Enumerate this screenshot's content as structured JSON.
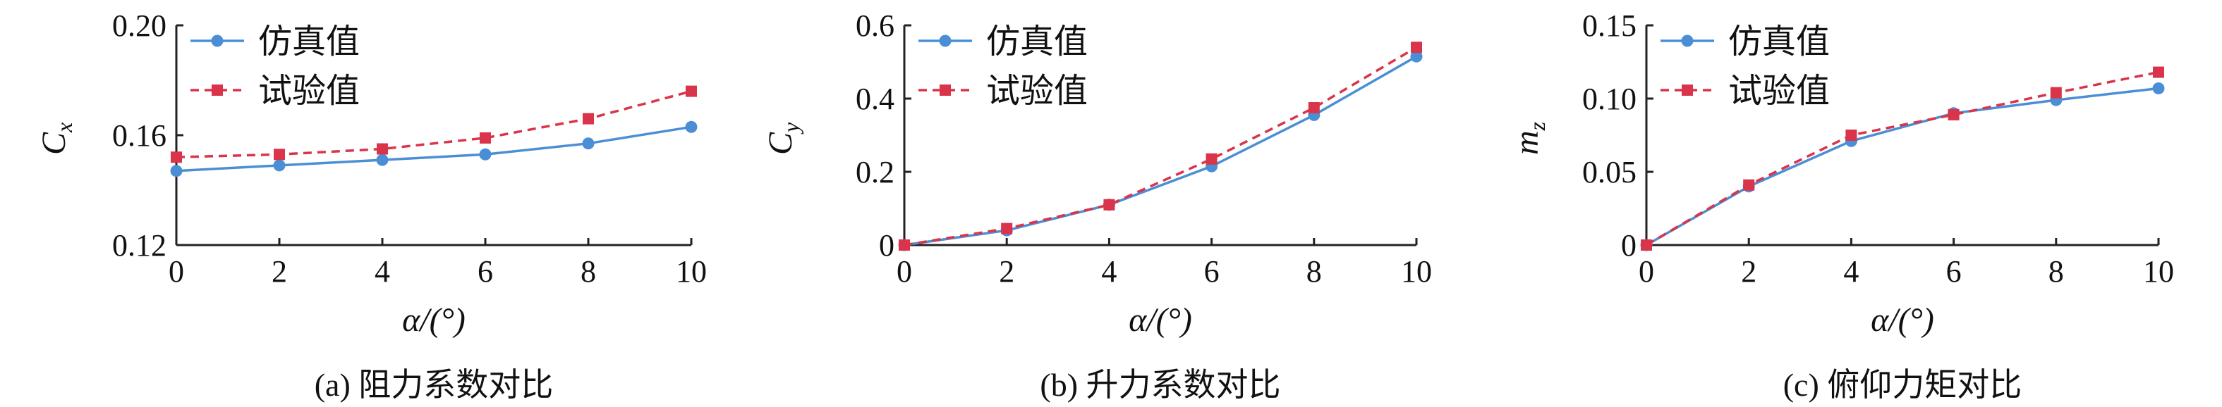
{
  "colors": {
    "sim": "#4a8fd6",
    "exp": "#d9344a"
  },
  "chart_data": [
    {
      "type": "line",
      "caption": "(a) 阻力系数对比",
      "xlabel": "α/(°)",
      "ylabel_main": "C",
      "ylabel_sub": "x",
      "x": [
        0,
        2,
        4,
        6,
        8,
        10
      ],
      "xlim": [
        0,
        10
      ],
      "ylim": [
        0.12,
        0.2
      ],
      "xticks": [
        "0",
        "2",
        "4",
        "6",
        "8",
        "10"
      ],
      "yticks": [
        "0.12",
        "0.16",
        "0.20"
      ],
      "ytick_values": [
        0.12,
        0.16,
        0.2
      ],
      "series": [
        {
          "name": "仿真值",
          "values": [
            0.147,
            0.149,
            0.151,
            0.153,
            0.157,
            0.163
          ],
          "style": "solid-circle"
        },
        {
          "name": "试验值",
          "values": [
            0.152,
            0.153,
            0.155,
            0.159,
            0.166,
            0.176
          ],
          "style": "dashed-square"
        }
      ]
    },
    {
      "type": "line",
      "caption": "(b) 升力系数对比",
      "xlabel": "α/(°)",
      "ylabel_main": "C",
      "ylabel_sub": "y",
      "x": [
        0,
        2,
        4,
        6,
        8,
        10
      ],
      "xlim": [
        0,
        10
      ],
      "ylim": [
        0,
        0.6
      ],
      "xticks": [
        "0",
        "2",
        "4",
        "6",
        "8",
        "10"
      ],
      "yticks": [
        "0",
        "0.2",
        "0.4",
        "0.6"
      ],
      "ytick_values": [
        0,
        0.2,
        0.4,
        0.6
      ],
      "series": [
        {
          "name": "仿真值",
          "values": [
            0.0,
            0.04,
            0.11,
            0.215,
            0.355,
            0.515
          ],
          "style": "solid-circle"
        },
        {
          "name": "试验值",
          "values": [
            0.0,
            0.045,
            0.11,
            0.235,
            0.375,
            0.54
          ],
          "style": "dashed-square"
        }
      ]
    },
    {
      "type": "line",
      "caption": "(c) 俯仰力矩对比",
      "xlabel": "α/(°)",
      "ylabel_main": "m",
      "ylabel_sub": "z",
      "x": [
        0,
        2,
        4,
        6,
        8,
        10
      ],
      "xlim": [
        0,
        10
      ],
      "ylim": [
        0,
        0.15
      ],
      "xticks": [
        "0",
        "2",
        "4",
        "6",
        "8",
        "10"
      ],
      "yticks": [
        "0",
        "0.05",
        "0.10",
        "0.15"
      ],
      "ytick_values": [
        0,
        0.05,
        0.1,
        0.15
      ],
      "series": [
        {
          "name": "仿真值",
          "values": [
            0.0,
            0.04,
            0.071,
            0.09,
            0.099,
            0.107
          ],
          "style": "solid-circle"
        },
        {
          "name": "试验值",
          "values": [
            0.0,
            0.041,
            0.075,
            0.089,
            0.104,
            0.118
          ],
          "style": "dashed-square"
        }
      ]
    }
  ]
}
